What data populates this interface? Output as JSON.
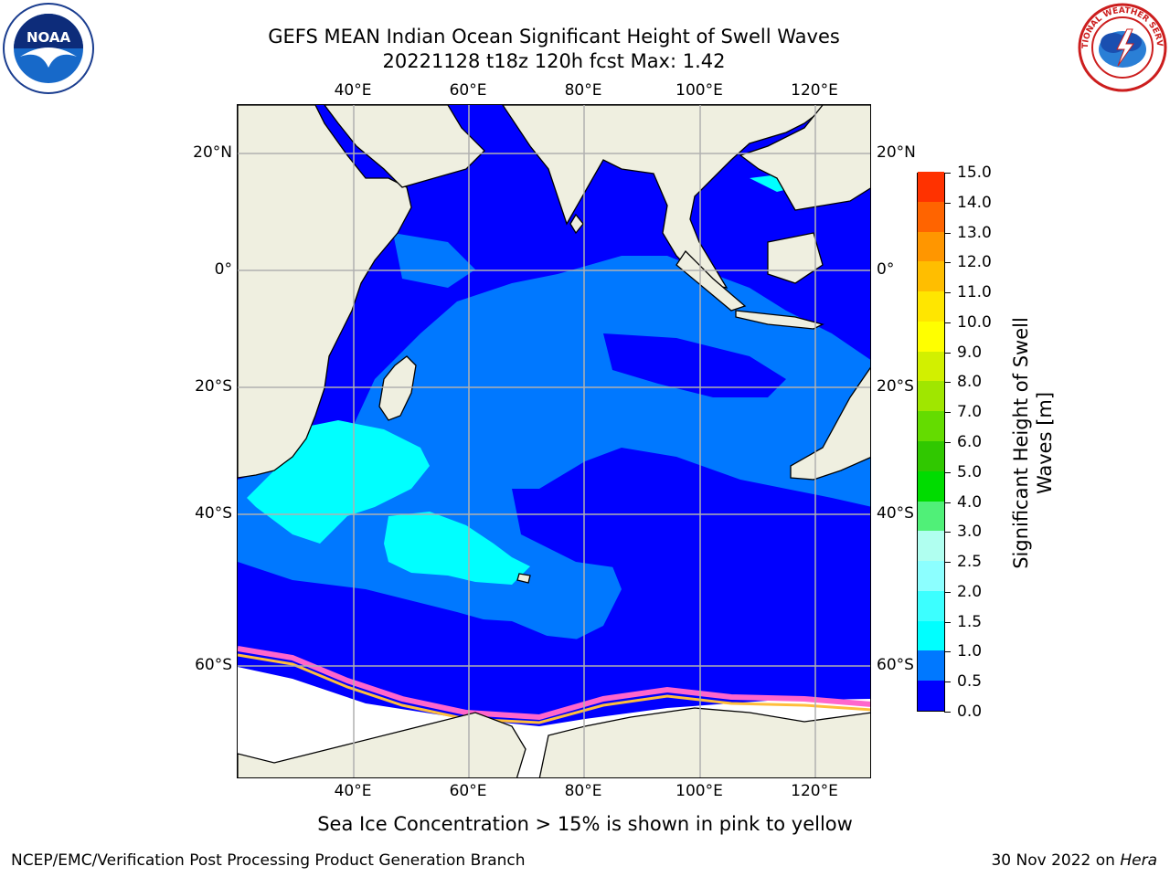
{
  "title_line1": "GEFS MEAN Indian Ocean Significant Height of Swell Waves",
  "title_line2": "20221128 t18z 120h fcst   Max: 1.42",
  "logos": {
    "left": {
      "text": "NOAA",
      "icon": "noaa-logo-icon"
    },
    "right": {
      "text": "NATIONAL WEATHER SERVICE",
      "icon": "nws-logo-icon"
    }
  },
  "map": {
    "lon_labels": [
      "40°E",
      "60°E",
      "80°E",
      "100°E",
      "120°E"
    ],
    "lat_labels_left": [
      "20°N",
      "0°",
      "20°S",
      "40°S",
      "60°S"
    ],
    "lat_labels_right": [
      "20°N",
      "0°",
      "20°S",
      "40°S",
      "60°S"
    ],
    "colors": {
      "land": "#efefe0",
      "ice_white": "#ffffff",
      "gridline": "#b0b0b0",
      "wave_0_0p5": "#0000ff",
      "wave_0p5_1": "#0078ff",
      "wave_1_1p5": "#00ffff"
    }
  },
  "colorbar": {
    "title_line1": "Significant Height of Swell",
    "title_line2": "Waves [m]",
    "ticks": [
      "0.0",
      "0.5",
      "1.0",
      "1.5",
      "2.0",
      "2.5",
      "3.0",
      "4.0",
      "5.0",
      "6.0",
      "7.0",
      "8.0",
      "9.0",
      "10.0",
      "11.0",
      "12.0",
      "13.0",
      "14.0",
      "15.0"
    ],
    "colors": [
      "#0000ff",
      "#0078ff",
      "#00ffff",
      "#3cffff",
      "#8cffff",
      "#b0fff0",
      "#50f078",
      "#00dc00",
      "#30c800",
      "#64dc00",
      "#a0e600",
      "#d2f000",
      "#ffff00",
      "#ffe600",
      "#ffbe00",
      "#ff9600",
      "#ff6400",
      "#ff3200"
    ]
  },
  "footer": {
    "note": "Sea Ice Concentration > 15% is shown in pink to yellow",
    "left": "NCEP/EMC/Verification Post Processing Product Generation Branch",
    "right_date": "30 Nov 2022 on ",
    "right_host": "Hera"
  }
}
